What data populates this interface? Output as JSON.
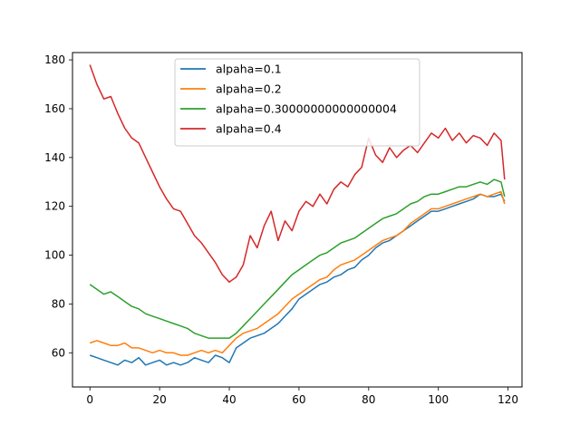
{
  "chart_data": {
    "type": "line",
    "title": "",
    "xlabel": "",
    "ylabel": "",
    "xlim": [
      -5,
      124
    ],
    "ylim": [
      46,
      183
    ],
    "xticks": [
      0,
      20,
      40,
      60,
      80,
      100,
      120
    ],
    "yticks": [
      60,
      80,
      100,
      120,
      140,
      160,
      180
    ],
    "grid": false,
    "legend_position": "top-center",
    "series": [
      {
        "name": "alpaha=0.1",
        "color": "#1f77b4",
        "x": [
          0,
          2,
          4,
          6,
          8,
          10,
          12,
          14,
          16,
          18,
          20,
          22,
          24,
          26,
          28,
          30,
          32,
          34,
          36,
          38,
          40,
          42,
          44,
          46,
          48,
          50,
          52,
          54,
          56,
          58,
          60,
          62,
          64,
          66,
          68,
          70,
          72,
          74,
          76,
          78,
          80,
          82,
          84,
          86,
          88,
          90,
          92,
          94,
          96,
          98,
          100,
          102,
          104,
          106,
          108,
          110,
          112,
          114,
          116,
          118,
          119
        ],
        "values": [
          59,
          58,
          57,
          56,
          55,
          57,
          56,
          58,
          55,
          56,
          57,
          55,
          56,
          55,
          56,
          58,
          57,
          56,
          59,
          58,
          56,
          62,
          64,
          66,
          67,
          68,
          70,
          72,
          75,
          78,
          82,
          84,
          86,
          88,
          89,
          91,
          92,
          94,
          95,
          98,
          100,
          103,
          105,
          106,
          108,
          110,
          112,
          114,
          116,
          118,
          118,
          119,
          120,
          121,
          122,
          123,
          125,
          124,
          124,
          125,
          122
        ]
      },
      {
        "name": "alpaha=0.2",
        "color": "#ff7f0e",
        "x": [
          0,
          2,
          4,
          6,
          8,
          10,
          12,
          14,
          16,
          18,
          20,
          22,
          24,
          26,
          28,
          30,
          32,
          34,
          36,
          38,
          40,
          42,
          44,
          46,
          48,
          50,
          52,
          54,
          56,
          58,
          60,
          62,
          64,
          66,
          68,
          70,
          72,
          74,
          76,
          78,
          80,
          82,
          84,
          86,
          88,
          90,
          92,
          94,
          96,
          98,
          100,
          102,
          104,
          106,
          108,
          110,
          112,
          114,
          116,
          118,
          119
        ],
        "values": [
          64,
          65,
          64,
          63,
          63,
          64,
          62,
          62,
          61,
          60,
          61,
          60,
          60,
          59,
          59,
          60,
          61,
          60,
          61,
          60,
          63,
          66,
          68,
          69,
          70,
          72,
          74,
          76,
          79,
          82,
          84,
          86,
          88,
          90,
          91,
          94,
          96,
          97,
          98,
          100,
          102,
          104,
          106,
          107,
          108,
          110,
          113,
          115,
          117,
          119,
          119,
          120,
          121,
          122,
          123,
          124,
          125,
          124,
          125,
          126,
          121
        ]
      },
      {
        "name": "alpaha=0.30000000000000004",
        "color": "#2ca02c",
        "x": [
          0,
          2,
          4,
          6,
          8,
          10,
          12,
          14,
          16,
          18,
          20,
          22,
          24,
          26,
          28,
          30,
          32,
          34,
          36,
          38,
          40,
          42,
          44,
          46,
          48,
          50,
          52,
          54,
          56,
          58,
          60,
          62,
          64,
          66,
          68,
          70,
          72,
          74,
          76,
          78,
          80,
          82,
          84,
          86,
          88,
          90,
          92,
          94,
          96,
          98,
          100,
          102,
          104,
          106,
          108,
          110,
          112,
          114,
          116,
          118,
          119
        ],
        "values": [
          88,
          86,
          84,
          85,
          83,
          81,
          79,
          78,
          76,
          75,
          74,
          73,
          72,
          71,
          70,
          68,
          67,
          66,
          66,
          66,
          66,
          68,
          71,
          74,
          77,
          80,
          83,
          86,
          89,
          92,
          94,
          96,
          98,
          100,
          101,
          103,
          105,
          106,
          107,
          109,
          111,
          113,
          115,
          116,
          117,
          119,
          121,
          122,
          124,
          125,
          125,
          126,
          127,
          128,
          128,
          129,
          130,
          129,
          131,
          130,
          124
        ]
      },
      {
        "name": "alpaha=0.4",
        "color": "#d62728",
        "x": [
          0,
          2,
          4,
          6,
          8,
          10,
          12,
          14,
          16,
          18,
          20,
          22,
          24,
          26,
          28,
          30,
          32,
          34,
          36,
          38,
          40,
          42,
          44,
          46,
          48,
          50,
          52,
          54,
          56,
          58,
          60,
          62,
          64,
          66,
          68,
          70,
          72,
          74,
          76,
          78,
          80,
          82,
          84,
          86,
          88,
          90,
          92,
          94,
          96,
          98,
          100,
          102,
          104,
          106,
          108,
          110,
          112,
          114,
          116,
          118,
          119
        ],
        "values": [
          178,
          170,
          164,
          165,
          158,
          152,
          148,
          146,
          140,
          134,
          128,
          123,
          119,
          118,
          113,
          108,
          105,
          101,
          97,
          92,
          89,
          91,
          96,
          108,
          103,
          112,
          118,
          106,
          114,
          110,
          118,
          122,
          120,
          125,
          121,
          127,
          130,
          128,
          133,
          136,
          148,
          141,
          138,
          144,
          140,
          143,
          145,
          142,
          146,
          150,
          148,
          152,
          147,
          150,
          146,
          149,
          148,
          145,
          150,
          147,
          131
        ]
      }
    ]
  }
}
